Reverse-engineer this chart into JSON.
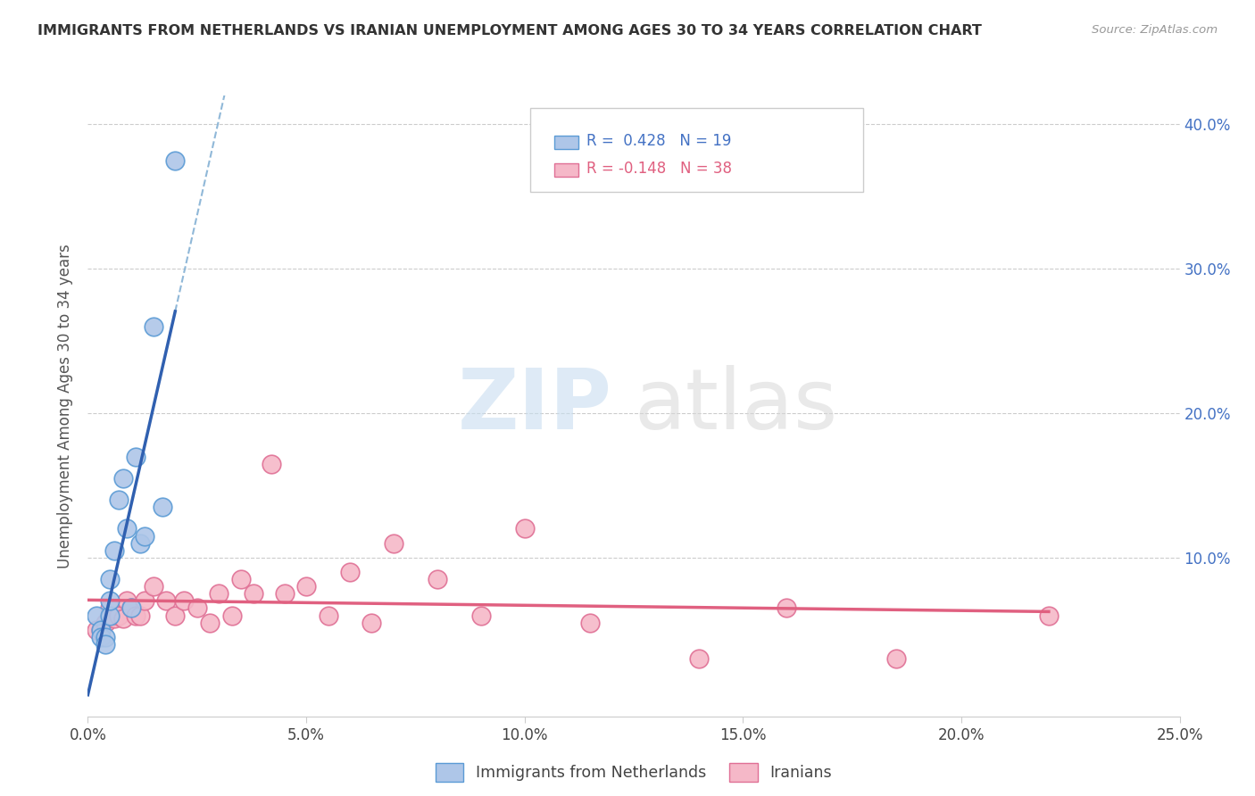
{
  "title": "IMMIGRANTS FROM NETHERLANDS VS IRANIAN UNEMPLOYMENT AMONG AGES 30 TO 34 YEARS CORRELATION CHART",
  "source": "Source: ZipAtlas.com",
  "ylabel": "Unemployment Among Ages 30 to 34 years",
  "xlim": [
    0.0,
    0.25
  ],
  "ylim": [
    -0.01,
    0.42
  ],
  "xtick_vals": [
    0.0,
    0.05,
    0.1,
    0.15,
    0.2,
    0.25
  ],
  "xtick_labels": [
    "0.0%",
    "5.0%",
    "10.0%",
    "15.0%",
    "20.0%",
    "25.0%"
  ],
  "ytick_vals": [
    0.1,
    0.2,
    0.3,
    0.4
  ],
  "ytick_labels": [
    "10.0%",
    "20.0%",
    "30.0%",
    "40.0%"
  ],
  "netherlands_color": "#aec6e8",
  "iranians_color": "#f5b8c8",
  "netherlands_edge_color": "#5b9bd5",
  "iranians_edge_color": "#e07095",
  "regression_blue_color": "#3060b0",
  "regression_pink_color": "#e06080",
  "dashed_line_color": "#90b8d8",
  "legend_label1": "Immigrants from Netherlands",
  "legend_label2": "Iranians",
  "watermark_zip": "ZIP",
  "watermark_atlas": "atlas",
  "background_color": "#ffffff",
  "grid_color": "#cccccc",
  "nl_x": [
    0.002,
    0.003,
    0.003,
    0.004,
    0.004,
    0.005,
    0.005,
    0.005,
    0.006,
    0.007,
    0.008,
    0.009,
    0.01,
    0.011,
    0.012,
    0.013,
    0.015,
    0.017,
    0.02
  ],
  "nl_y": [
    0.06,
    0.05,
    0.045,
    0.045,
    0.04,
    0.06,
    0.07,
    0.085,
    0.105,
    0.14,
    0.155,
    0.12,
    0.065,
    0.17,
    0.11,
    0.115,
    0.26,
    0.135,
    0.375
  ],
  "ir_x": [
    0.002,
    0.003,
    0.004,
    0.005,
    0.005,
    0.006,
    0.007,
    0.008,
    0.009,
    0.01,
    0.011,
    0.012,
    0.013,
    0.015,
    0.018,
    0.02,
    0.022,
    0.025,
    0.028,
    0.03,
    0.033,
    0.035,
    0.038,
    0.042,
    0.045,
    0.05,
    0.055,
    0.06,
    0.065,
    0.07,
    0.08,
    0.09,
    0.1,
    0.115,
    0.14,
    0.16,
    0.185,
    0.22
  ],
  "ir_y": [
    0.05,
    0.05,
    0.055,
    0.06,
    0.065,
    0.058,
    0.06,
    0.058,
    0.07,
    0.065,
    0.06,
    0.06,
    0.07,
    0.08,
    0.07,
    0.06,
    0.07,
    0.065,
    0.055,
    0.075,
    0.06,
    0.085,
    0.075,
    0.165,
    0.075,
    0.08,
    0.06,
    0.09,
    0.055,
    0.11,
    0.085,
    0.06,
    0.12,
    0.055,
    0.03,
    0.065,
    0.03,
    0.06
  ]
}
